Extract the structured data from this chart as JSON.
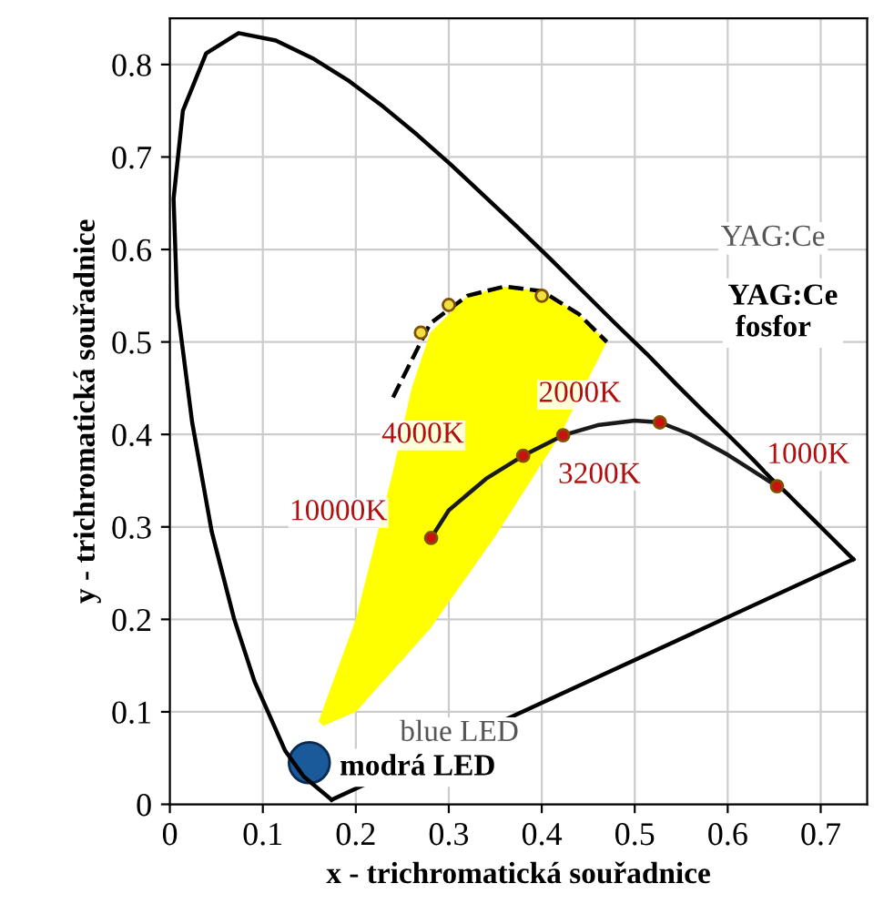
{
  "chart_data": {
    "type": "line",
    "xlabel": "x - trichromatická souřadnice",
    "ylabel": "y - trichromatická souřadnice",
    "xlim": [
      0,
      0.75
    ],
    "ylim": [
      0,
      0.85
    ],
    "xticks": [
      0,
      0.1,
      0.2,
      0.3,
      0.4,
      0.5,
      0.6,
      0.7
    ],
    "yticks": [
      0,
      0.1,
      0.2,
      0.3,
      0.4,
      0.5,
      0.6,
      0.7,
      0.8
    ],
    "grid": true,
    "series": [
      {
        "type": "area",
        "color": "#ffff00",
        "x": [
          0.16,
          0.2,
          0.24,
          0.26,
          0.28,
          0.32,
          0.36,
          0.4,
          0.44,
          0.47,
          0.42,
          0.35,
          0.28,
          0.2,
          0.165
        ],
        "values": [
          0.09,
          0.2,
          0.36,
          0.45,
          0.51,
          0.55,
          0.56,
          0.555,
          0.53,
          0.5,
          0.4,
          0.29,
          0.19,
          0.1,
          0.085
        ]
      },
      {
        "color": "#000000",
        "x": [
          0.174,
          0.144,
          0.124,
          0.091,
          0.069,
          0.045,
          0.024,
          0.008,
          0.004,
          0.014,
          0.039,
          0.074,
          0.114,
          0.155,
          0.193,
          0.23,
          0.266,
          0.302,
          0.337,
          0.373,
          0.409,
          0.444,
          0.479,
          0.513,
          0.545,
          0.575,
          0.603,
          0.627,
          0.648,
          0.666,
          0.68,
          0.692,
          0.701,
          0.735
        ],
        "values": [
          0.005,
          0.03,
          0.058,
          0.133,
          0.201,
          0.295,
          0.413,
          0.538,
          0.655,
          0.75,
          0.812,
          0.834,
          0.826,
          0.806,
          0.782,
          0.754,
          0.724,
          0.692,
          0.659,
          0.625,
          0.59,
          0.555,
          0.52,
          0.487,
          0.454,
          0.424,
          0.397,
          0.373,
          0.351,
          0.334,
          0.32,
          0.308,
          0.299,
          0.265
        ]
      },
      {
        "color": "#000000",
        "x": [
          0.174,
          0.735
        ],
        "values": [
          0.005,
          0.265
        ]
      },
      {
        "color": "#000000",
        "line_style": "dashed",
        "x": [
          0.24,
          0.26,
          0.28,
          0.32,
          0.36,
          0.4,
          0.44,
          0.47
        ],
        "values": [
          0.44,
          0.48,
          0.52,
          0.55,
          0.56,
          0.555,
          0.53,
          0.5
        ]
      },
      {
        "type": "scatter",
        "color": "#f0e040",
        "marker": "circle",
        "x": [
          0.27,
          0.3,
          0.4
        ],
        "values": [
          0.51,
          0.54,
          0.55
        ]
      },
      {
        "color": "#1a1a1a",
        "x": [
          0.281,
          0.3,
          0.34,
          0.38,
          0.423,
          0.46,
          0.5,
          0.527,
          0.56,
          0.6,
          0.653
        ],
        "values": [
          0.288,
          0.318,
          0.352,
          0.377,
          0.399,
          0.41,
          0.415,
          0.413,
          0.4,
          0.378,
          0.344
        ]
      },
      {
        "type": "scatter",
        "color": "#cc1111",
        "marker": "circle",
        "x": [
          0.281,
          0.38,
          0.423,
          0.527,
          0.653
        ],
        "values": [
          0.288,
          0.377,
          0.399,
          0.413,
          0.344
        ]
      },
      {
        "type": "scatter",
        "color": "#1a5a9a",
        "marker": "circle",
        "x": [
          0.15
        ],
        "values": [
          0.045
        ]
      }
    ],
    "annotations": [
      {
        "text": "10000K",
        "x": 0.281,
        "y": 0.288
      },
      {
        "text": "4000K",
        "x": 0.38,
        "y": 0.377
      },
      {
        "text": "3200K",
        "x": 0.423,
        "y": 0.399
      },
      {
        "text": "2000K",
        "x": 0.527,
        "y": 0.413
      },
      {
        "text": "1000K",
        "x": 0.653,
        "y": 0.344
      },
      "YAG:Ce",
      "YAG:Ce\n fosfor",
      "blue LED",
      {
        "text": "modrá LED",
        "x": 0.15,
        "y": 0.045
      }
    ]
  }
}
